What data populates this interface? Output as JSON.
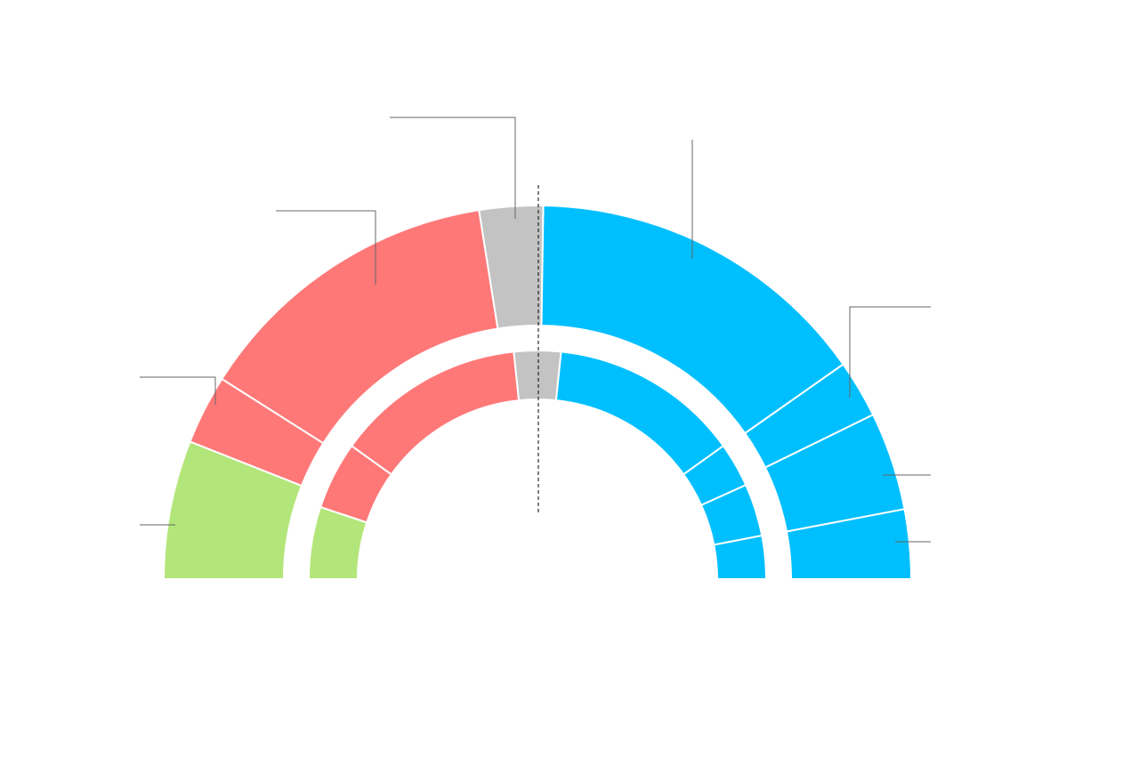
{
  "chart_data": {
    "type": "pie",
    "colors": [
      "#b3e67a",
      "#ff7878",
      "#ff7878",
      "#c3c3c3",
      "#00bfff",
      "#00bfff",
      "#00bfff",
      "#00bfff"
    ],
    "rings": [
      {
        "values": [
          12,
          6,
          27,
          5.5,
          30,
          5,
          8.5,
          6
        ]
      },
      {
        "values": [
          10.2,
          9.6,
          26.9,
          6.6,
          26.9,
          6.3,
          7.4,
          6.1
        ]
      }
    ]
  }
}
